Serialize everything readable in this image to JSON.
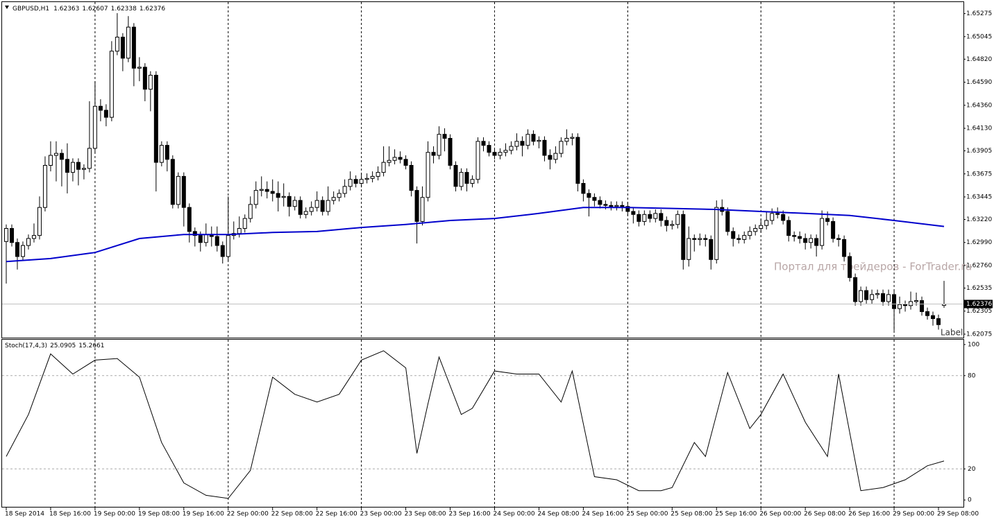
{
  "chart_data": [
    {
      "type": "candlestick",
      "title": "GBPUSD,H1",
      "xlim": [
        -0.75,
        172.5
      ],
      "xticks": [
        {
          "value": 0,
          "label": "18 Sep 2014"
        },
        {
          "value": 8,
          "label": "18 Sep 16:00"
        },
        {
          "value": 16,
          "label": "19 Sep 00:00"
        },
        {
          "value": 24,
          "label": "19 Sep 08:00"
        },
        {
          "value": 32,
          "label": "19 Sep 16:00"
        },
        {
          "value": 40,
          "label": "22 Sep 00:00"
        },
        {
          "value": 48,
          "label": "22 Sep 08:00"
        },
        {
          "value": 56,
          "label": "22 Sep 16:00"
        },
        {
          "value": 64,
          "label": "23 Sep 00:00"
        },
        {
          "value": 72,
          "label": "23 Sep 08:00"
        },
        {
          "value": 80,
          "label": "23 Sep 16:00"
        },
        {
          "value": 88,
          "label": "24 Sep 00:00"
        },
        {
          "value": 96,
          "label": "24 Sep 08:00"
        },
        {
          "value": 104,
          "label": "24 Sep 16:00"
        },
        {
          "value": 112,
          "label": "25 Sep 00:00"
        },
        {
          "value": 120,
          "label": "25 Sep 08:00"
        },
        {
          "value": 128,
          "label": "25 Sep 16:00"
        },
        {
          "value": 136,
          "label": "26 Sep 00:00"
        },
        {
          "value": 144,
          "label": "26 Sep 08:00"
        },
        {
          "value": 152,
          "label": "26 Sep 16:00"
        },
        {
          "value": 160,
          "label": "29 Sep 00:00"
        },
        {
          "value": 168,
          "label": "29 Sep 08:00"
        }
      ],
      "ylim": [
        1.6204,
        1.6539
      ],
      "yticks": [
        1.65275,
        1.65045,
        {
          "value": 1.6482,
          "label": "1.64820"
        },
        {
          "value": 1.6459,
          "label": "1.64590"
        },
        {
          "value": 1.6436,
          "label": "1.64360"
        },
        {
          "value": 1.6413,
          "label": "1.64130"
        },
        1.63905,
        1.63675,
        1.63445,
        {
          "value": 1.6322,
          "label": "1.63220"
        },
        {
          "value": 1.6299,
          "label": "1.62990"
        },
        {
          "value": 1.6276,
          "label": "1.62760"
        },
        1.62535,
        1.62305,
        1.62075
      ],
      "open": [
        1.63,
        1.6313,
        1.6299,
        1.6285,
        1.6296,
        1.6303,
        1.6306,
        1.6334,
        1.6376,
        1.6386,
        1.6388,
        1.6382,
        1.6369,
        1.6379,
        1.6372,
        1.6373,
        1.6393,
        1.6435,
        1.6431,
        1.6424,
        1.649,
        1.6504,
        1.6483,
        1.6514,
        1.6473,
        1.6474,
        1.6452,
        1.6466,
        1.6379,
        1.6396,
        1.6382,
        1.6337,
        1.6365,
        1.6334,
        1.631,
        1.6306,
        1.6299,
        1.6307,
        1.6305,
        1.6296,
        1.6285,
        1.6306,
        1.6308,
        1.6313,
        1.6323,
        1.6337,
        1.6351,
        1.6352,
        1.635,
        1.6348,
        1.6344,
        1.6345,
        1.6335,
        1.6341,
        1.6327,
        1.633,
        1.6334,
        1.6341,
        1.633,
        1.6341,
        1.6344,
        1.6348,
        1.6355,
        1.6362,
        1.6358,
        1.6362,
        1.6363,
        1.6365,
        1.6369,
        1.6379,
        1.6381,
        1.6384,
        1.6382,
        1.6376,
        1.6351,
        1.632,
        1.6344,
        1.6389,
        1.6386,
        1.6407,
        1.6403,
        1.6376,
        1.6355,
        1.6369,
        1.6358,
        1.6362,
        1.64,
        1.6396,
        1.6389,
        1.6386,
        1.6389,
        1.6391,
        1.6395,
        1.64,
        1.6396,
        1.6407,
        1.64,
        1.6401,
        1.6386,
        1.6382,
        1.6388,
        1.64,
        1.6403,
        1.6404,
        1.6358,
        1.6348,
        1.6344,
        1.6341,
        1.6337,
        1.6336,
        1.6335,
        1.6336,
        1.6335,
        1.633,
        1.6327,
        1.632,
        1.6327,
        1.6323,
        1.6328,
        1.6321,
        1.6316,
        1.6317,
        1.6327,
        1.6282,
        1.6303,
        1.6302,
        1.6303,
        1.6302,
        1.6282,
        1.6334,
        1.633,
        1.631,
        1.6303,
        1.6302,
        1.6306,
        1.631,
        1.6313,
        1.6316,
        1.6321,
        1.6328,
        1.6327,
        1.6321,
        1.6306,
        1.6305,
        1.6303,
        1.6299,
        1.6303,
        1.6296,
        1.6323,
        1.632,
        1.6303,
        1.6302,
        1.6285,
        1.6264,
        1.624,
        1.6251,
        1.6242,
        1.6247,
        1.6248,
        1.624,
        1.6247,
        1.6233,
        1.6237,
        1.6236,
        1.624,
        1.6241,
        1.623,
        1.6226,
        1.6223,
        1.62363
      ],
      "high": [
        1.6317,
        1.6317,
        1.6303,
        1.63,
        1.6307,
        1.6318,
        1.6345,
        1.6385,
        1.64,
        1.64,
        1.6392,
        1.6398,
        1.6383,
        1.6383,
        1.6377,
        1.644,
        1.646,
        1.6442,
        1.6437,
        1.65,
        1.6528,
        1.6508,
        1.6525,
        1.6518,
        1.6484,
        1.6478,
        1.647,
        1.647,
        1.64,
        1.64,
        1.6386,
        1.6369,
        1.6369,
        1.6338,
        1.6314,
        1.631,
        1.6318,
        1.6315,
        1.6315,
        1.63,
        1.6345,
        1.632,
        1.6325,
        1.6327,
        1.6345,
        1.636,
        1.6365,
        1.636,
        1.6362,
        1.636,
        1.6358,
        1.6349,
        1.6345,
        1.6345,
        1.6334,
        1.634,
        1.635,
        1.6345,
        1.6355,
        1.635,
        1.6352,
        1.6362,
        1.637,
        1.6366,
        1.6368,
        1.6368,
        1.637,
        1.6375,
        1.6395,
        1.6395,
        1.6392,
        1.639,
        1.6386,
        1.638,
        1.6355,
        1.6355,
        1.64,
        1.6395,
        1.6415,
        1.6413,
        1.6407,
        1.638,
        1.6373,
        1.6373,
        1.6366,
        1.6404,
        1.6404,
        1.64,
        1.6393,
        1.6393,
        1.6398,
        1.64,
        1.6408,
        1.6405,
        1.6412,
        1.6411,
        1.6405,
        1.6405,
        1.6392,
        1.6395,
        1.6404,
        1.6412,
        1.6408,
        1.6408,
        1.6362,
        1.6352,
        1.6348,
        1.6345,
        1.6341,
        1.634,
        1.634,
        1.634,
        1.6339,
        1.6334,
        1.6331,
        1.6331,
        1.6331,
        1.6332,
        1.6332,
        1.6325,
        1.6321,
        1.6331,
        1.6331,
        1.6315,
        1.6307,
        1.6308,
        1.6307,
        1.6306,
        1.6341,
        1.6342,
        1.6334,
        1.6314,
        1.6307,
        1.631,
        1.6315,
        1.6317,
        1.6322,
        1.633,
        1.6333,
        1.6334,
        1.6331,
        1.6325,
        1.631,
        1.631,
        1.6308,
        1.6307,
        1.6307,
        1.6331,
        1.633,
        1.6324,
        1.6307,
        1.6306,
        1.6289,
        1.6268,
        1.6255,
        1.6255,
        1.6252,
        1.6252,
        1.6252,
        1.6252,
        1.6251,
        1.6245,
        1.6241,
        1.625,
        1.6249,
        1.6245,
        1.6234,
        1.623,
        1.6227,
        1.62607
      ],
      "low": [
        1.6258,
        1.6295,
        1.6272,
        1.6281,
        1.6292,
        1.6299,
        1.6302,
        1.633,
        1.637,
        1.636,
        1.6355,
        1.6348,
        1.636,
        1.6356,
        1.6362,
        1.6369,
        1.6389,
        1.642,
        1.6415,
        1.642,
        1.6486,
        1.647,
        1.6479,
        1.6455,
        1.646,
        1.644,
        1.643,
        1.635,
        1.6375,
        1.637,
        1.6333,
        1.6333,
        1.6315,
        1.6299,
        1.6295,
        1.629,
        1.6295,
        1.6295,
        1.629,
        1.6278,
        1.6281,
        1.6302,
        1.6304,
        1.6309,
        1.6319,
        1.6333,
        1.6345,
        1.6343,
        1.634,
        1.633,
        1.6335,
        1.6325,
        1.6331,
        1.6323,
        1.6323,
        1.6326,
        1.633,
        1.6326,
        1.6326,
        1.6337,
        1.634,
        1.6344,
        1.6351,
        1.6354,
        1.6354,
        1.6358,
        1.6359,
        1.6361,
        1.6365,
        1.6375,
        1.6377,
        1.6378,
        1.6372,
        1.6345,
        1.6298,
        1.6316,
        1.634,
        1.6378,
        1.6382,
        1.639,
        1.6372,
        1.635,
        1.6351,
        1.635,
        1.6354,
        1.6358,
        1.639,
        1.6385,
        1.6382,
        1.6382,
        1.6385,
        1.6387,
        1.6391,
        1.6385,
        1.6392,
        1.6396,
        1.6393,
        1.638,
        1.6372,
        1.6378,
        1.6384,
        1.6396,
        1.6396,
        1.635,
        1.634,
        1.6325,
        1.6335,
        1.6333,
        1.6332,
        1.6331,
        1.6331,
        1.633,
        1.6326,
        1.6318,
        1.6315,
        1.6316,
        1.6319,
        1.6319,
        1.6315,
        1.631,
        1.6312,
        1.6313,
        1.6272,
        1.6275,
        1.629,
        1.6296,
        1.6295,
        1.6272,
        1.6278,
        1.6326,
        1.6306,
        1.6295,
        1.6298,
        1.6298,
        1.6302,
        1.6306,
        1.6309,
        1.6312,
        1.6317,
        1.6323,
        1.6317,
        1.63,
        1.63,
        1.6298,
        1.6292,
        1.6293,
        1.6285,
        1.6292,
        1.6316,
        1.6299,
        1.6295,
        1.628,
        1.626,
        1.6236,
        1.6236,
        1.6238,
        1.6238,
        1.6243,
        1.6236,
        1.6236,
        1.6211,
        1.6228,
        1.623,
        1.6232,
        1.6236,
        1.6226,
        1.6222,
        1.6216,
        1.6212,
        1.62338
      ],
      "close": [
        1.6313,
        1.6299,
        1.6285,
        1.6296,
        1.6303,
        1.6306,
        1.6334,
        1.6376,
        1.6386,
        1.6388,
        1.6382,
        1.6369,
        1.6379,
        1.6372,
        1.6373,
        1.6393,
        1.6435,
        1.6431,
        1.6424,
        1.649,
        1.6504,
        1.6483,
        1.6514,
        1.6473,
        1.6474,
        1.6452,
        1.6466,
        1.6379,
        1.6396,
        1.6382,
        1.6337,
        1.6365,
        1.6334,
        1.631,
        1.6306,
        1.6299,
        1.6307,
        1.6305,
        1.6296,
        1.6285,
        1.6306,
        1.6308,
        1.6313,
        1.6323,
        1.6337,
        1.6351,
        1.6352,
        1.635,
        1.6348,
        1.6344,
        1.6345,
        1.6335,
        1.6341,
        1.6327,
        1.633,
        1.6334,
        1.6341,
        1.633,
        1.6341,
        1.6344,
        1.6348,
        1.6355,
        1.6362,
        1.6358,
        1.6362,
        1.6363,
        1.6365,
        1.6369,
        1.6379,
        1.6381,
        1.6384,
        1.6382,
        1.6376,
        1.6351,
        1.632,
        1.6344,
        1.6389,
        1.6386,
        1.6407,
        1.6403,
        1.6376,
        1.6355,
        1.6369,
        1.6358,
        1.6362,
        1.64,
        1.6396,
        1.6389,
        1.6386,
        1.6389,
        1.6391,
        1.6395,
        1.64,
        1.6396,
        1.6407,
        1.64,
        1.6401,
        1.6386,
        1.6382,
        1.6388,
        1.64,
        1.6403,
        1.6404,
        1.6358,
        1.6348,
        1.6344,
        1.6341,
        1.6337,
        1.6336,
        1.6335,
        1.6336,
        1.6335,
        1.633,
        1.6327,
        1.632,
        1.6327,
        1.6323,
        1.6328,
        1.6321,
        1.6316,
        1.6317,
        1.6327,
        1.6282,
        1.6303,
        1.6302,
        1.6303,
        1.6302,
        1.6282,
        1.6334,
        1.633,
        1.631,
        1.6303,
        1.6302,
        1.6306,
        1.631,
        1.6313,
        1.6316,
        1.6321,
        1.6328,
        1.6327,
        1.6321,
        1.6306,
        1.6305,
        1.6303,
        1.6299,
        1.6303,
        1.6296,
        1.6323,
        1.632,
        1.6303,
        1.6302,
        1.6285,
        1.6264,
        1.624,
        1.6251,
        1.6242,
        1.6247,
        1.6248,
        1.624,
        1.6247,
        1.6233,
        1.6237,
        1.6236,
        1.624,
        1.6241,
        1.623,
        1.6226,
        1.6223,
        1.6217,
        1.62376
      ],
      "bull_color": "#ffffff",
      "bear_color": "#000000",
      "overlays": [
        {
          "color": "#0000cc",
          "x": [
            0,
            8,
            16,
            24,
            32,
            40,
            48,
            56,
            64,
            72,
            80,
            88,
            96,
            104,
            112,
            120,
            128,
            136,
            144,
            152,
            160,
            169
          ],
          "values": [
            1.628,
            1.6283,
            1.6289,
            1.6303,
            1.6307,
            1.6307,
            1.6309,
            1.631,
            1.6314,
            1.6317,
            1.6321,
            1.6323,
            1.6328,
            1.6334,
            1.6334,
            1.6333,
            1.6332,
            1.633,
            1.6328,
            1.6326,
            1.6321,
            1.6315
          ]
        }
      ],
      "watermark": "Портал для трейдеров - ForTrader.ru",
      "label_text": "Label"
    },
    {
      "type": "line",
      "title": "Stoch(17,4,3)",
      "signal_value": 15.2661,
      "color": "#000000",
      "x": [
        0,
        4,
        8,
        12,
        16,
        20,
        24,
        28,
        32,
        36,
        40,
        44,
        48,
        52,
        56,
        60,
        64,
        68,
        72,
        74,
        76,
        78,
        82,
        84,
        88,
        92,
        96,
        100,
        102,
        106,
        110,
        114,
        118,
        120,
        124,
        126,
        130,
        134,
        136,
        140,
        144,
        148,
        150,
        154,
        158,
        162,
        166,
        169
      ],
      "values": [
        28,
        55,
        94,
        81,
        90,
        91,
        79,
        37,
        11,
        3,
        1,
        19,
        79,
        68,
        63,
        68,
        90,
        96,
        85,
        30,
        62,
        92,
        55,
        59,
        83,
        81,
        81,
        63,
        83,
        15,
        13,
        6,
        6,
        8,
        37,
        28,
        82,
        46,
        55,
        81,
        50,
        28,
        81,
        6,
        8,
        13,
        22,
        25.0905
      ],
      "ylim": [
        -4.4,
        103.1
      ],
      "yticks": [
        0,
        20,
        80,
        100
      ]
    }
  ]
}
